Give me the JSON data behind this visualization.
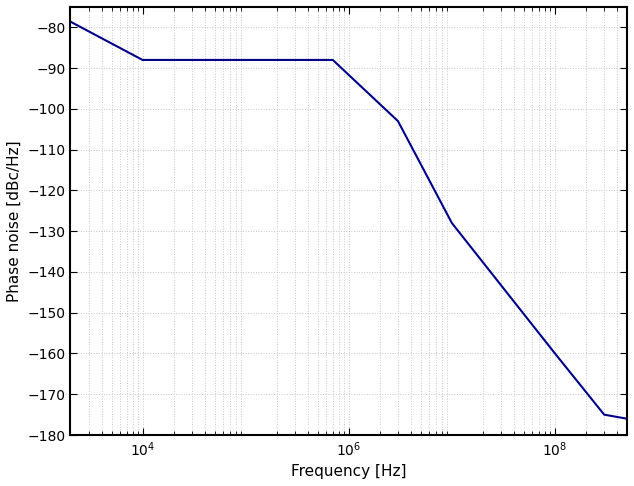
{
  "x": [
    1800,
    10000,
    100000,
    700000,
    3000000,
    10000000,
    100000000,
    300000000,
    500000000
  ],
  "y": [
    -78,
    -88,
    -88,
    -88,
    -103,
    -128,
    -160,
    -175,
    -176
  ],
  "line_color": "#00008B",
  "line_width": 1.5,
  "xlabel": "Frequency [Hz]",
  "ylabel": "Phase noise [dBc/Hz]",
  "xlim_left": 2000,
  "xlim_right": 500000000,
  "ylim": [
    -180,
    -75
  ],
  "yticks": [
    -180,
    -170,
    -160,
    -150,
    -140,
    -130,
    -120,
    -110,
    -100,
    -90,
    -80
  ],
  "xticks_major": [
    10000,
    1000000,
    100000000
  ],
  "xtick_labels": [
    "$10^4$",
    "$10^6$",
    "$10^8$"
  ],
  "grid_color": "#c8c8c8",
  "grid_linestyle": ":",
  "grid_linewidth": 0.7,
  "background_color": "#ffffff",
  "tick_label_fontsize": 10,
  "axis_label_fontsize": 11,
  "spine_linewidth": 1.5
}
